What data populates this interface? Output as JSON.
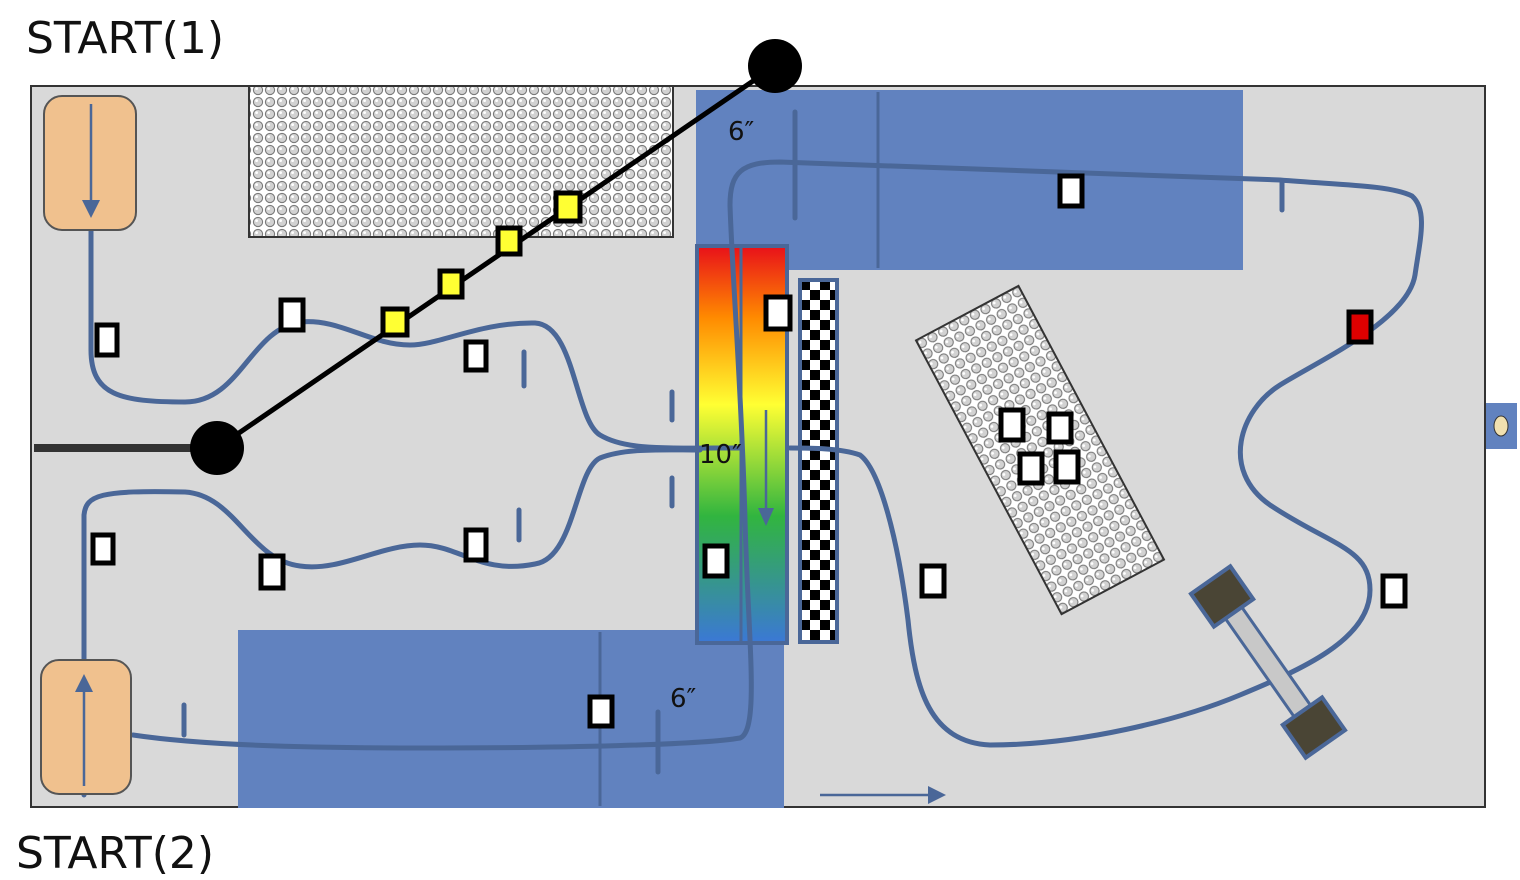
{
  "labels": {
    "start_1": "START(1)",
    "start_2": "START(2)",
    "dim_top": "6″",
    "dim_bottom": "6″",
    "dim_ramp": "10″"
  },
  "colors": {
    "board": "#d9d9d9",
    "blue_zone": "#6182bf",
    "track": "#4a6798",
    "start_pad": "#f0c18e",
    "gradient": [
      "#e8101a",
      "#ff8a00",
      "#ffff33",
      "#31b53f",
      "#3b78d6"
    ],
    "marker_yellow": "#ffff33",
    "marker_red": "#dd0000"
  },
  "icons": [
    "start-pad-down-arrow-icon",
    "start-pad-up-arrow-icon",
    "direction-arrow-icon",
    "pivot-arm-icon",
    "dumbbell-obstacle-icon",
    "side-connector-icon"
  ]
}
